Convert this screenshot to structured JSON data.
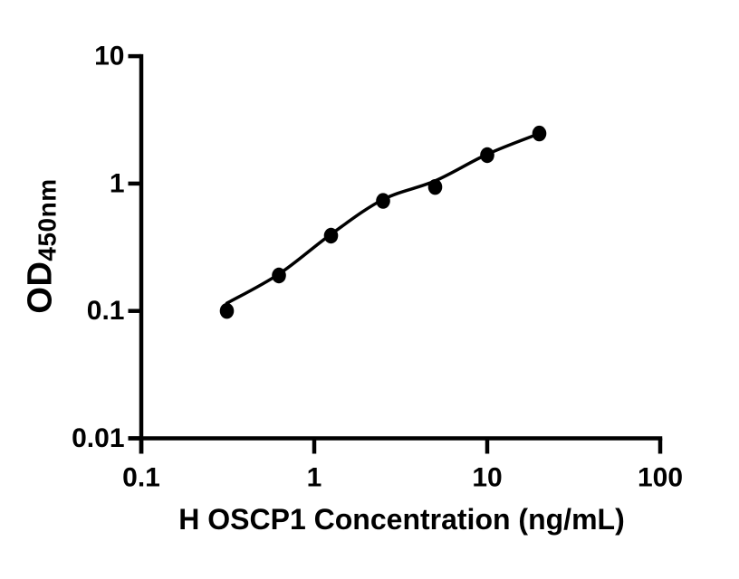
{
  "figure": {
    "background_color": "#ffffff",
    "ink_color": "#000000"
  },
  "chart_data": {
    "type": "scatter",
    "title": "",
    "xlabel": "H OSCP1 Concentration (ng/mL)",
    "ylabel_main": "OD",
    "ylabel_sub": "450nm",
    "x_scale": "log",
    "y_scale": "log",
    "xlim": [
      0.1,
      100
    ],
    "ylim": [
      0.01,
      10
    ],
    "x_ticks": [
      0.1,
      1,
      10,
      100
    ],
    "x_tick_labels": [
      "0.1",
      "1",
      "10",
      "100"
    ],
    "y_ticks": [
      10,
      1,
      0.1,
      0.01
    ],
    "y_tick_labels": [
      "10",
      "1",
      "0.1",
      "0.01"
    ],
    "grid": false,
    "legend": "none",
    "series": [
      {
        "name": "standard-data-points",
        "type": "scatter",
        "marker": "filled-circle",
        "color": "#000000",
        "x": [
          0.3125,
          0.625,
          1.25,
          2.5,
          5,
          10,
          20
        ],
        "y": [
          0.1,
          0.19,
          0.39,
          0.73,
          0.94,
          1.67,
          2.47
        ]
      },
      {
        "name": "fitted-curve",
        "type": "line",
        "color": "#000000",
        "x": [
          0.3125,
          0.625,
          1.25,
          2.5,
          5,
          10,
          20
        ],
        "y": [
          0.115,
          0.195,
          0.4,
          0.75,
          1.05,
          1.7,
          2.47
        ]
      }
    ]
  }
}
